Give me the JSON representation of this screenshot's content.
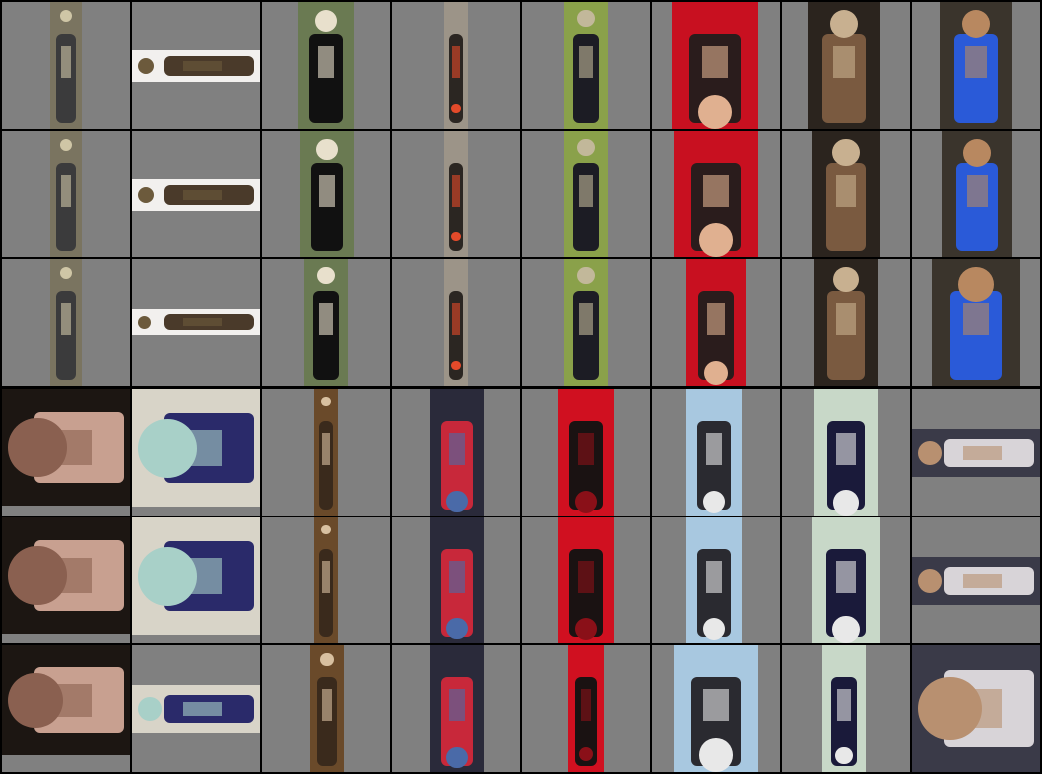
{
  "grid": {
    "columns": 8,
    "bands": 2,
    "rows_per_band": 3,
    "background_color": "#808080",
    "separator_color": "#000000"
  },
  "images": [
    {
      "icon": "person-standing-thumbnail",
      "orientation": "upright",
      "bg": "#7a7460",
      "fg": "#3b3b3c",
      "accent": "#cfc6a6"
    },
    {
      "icon": "person-lying-thumbnail",
      "orientation": "rotated-90",
      "bg": "#f2f0ee",
      "fg": "#4a3a2a",
      "accent": "#6c5a3c"
    },
    {
      "icon": "woman-black-jacket-thumbnail",
      "orientation": "upright",
      "bg": "#6a7a52",
      "fg": "#111111",
      "accent": "#e8e0cc"
    },
    {
      "icon": "person-upside-down-thumbnail",
      "orientation": "upside-down",
      "bg": "#9c9488",
      "fg": "#2b2622",
      "accent": "#e34a2a"
    },
    {
      "icon": "person-walking-path-thumbnail",
      "orientation": "upright",
      "bg": "#8aa14a",
      "fg": "#1c1c24",
      "accent": "#c2b89a"
    },
    {
      "icon": "person-red-shirt-thumbnail",
      "orientation": "upside-down",
      "bg": "#c81020",
      "fg": "#2a1c1c",
      "accent": "#e0b090"
    },
    {
      "icon": "man-face-thumbnail",
      "orientation": "upright",
      "bg": "#2b241e",
      "fg": "#7a5a40",
      "accent": "#c8b090"
    },
    {
      "icon": "man-blue-shirt-thumbnail",
      "orientation": "upright",
      "bg": "#3a342c",
      "fg": "#2a5ad8",
      "accent": "#b88860"
    },
    {
      "icon": "woman-face-sideways-thumbnail",
      "orientation": "rotated-90",
      "bg": "#1c1612",
      "fg": "#c8a090",
      "accent": "#8a6050"
    },
    {
      "icon": "people-sitting-sideways-thumbnail",
      "orientation": "rotated-90",
      "bg": "#d8d4c8",
      "fg": "#2a2a6a",
      "accent": "#a8d0c8"
    },
    {
      "icon": "person-seated-thumbnail",
      "orientation": "upright",
      "bg": "#6a4a2a",
      "fg": "#3a2a1c",
      "accent": "#d8c0a0"
    },
    {
      "icon": "two-people-upside-down-thumbnail",
      "orientation": "upside-down",
      "bg": "#2a2a3a",
      "fg": "#c8283a",
      "accent": "#4a6aa8"
    },
    {
      "icon": "person-red-top-upside-down-thumbnail",
      "orientation": "upside-down",
      "bg": "#d01020",
      "fg": "#1a1212",
      "accent": "#8a1018"
    },
    {
      "icon": "person-blue-sky-thumbnail",
      "orientation": "upside-down",
      "bg": "#a8c8e0",
      "fg": "#2a2a30",
      "accent": "#e8e8e8"
    },
    {
      "icon": "person-white-dress-thumbnail",
      "orientation": "upside-down",
      "bg": "#c8d8c8",
      "fg": "#1a1a3a",
      "accent": "#e8e8e8"
    },
    {
      "icon": "group-people-sideways-thumbnail",
      "orientation": "rotated-90",
      "bg": "#3a3a48",
      "fg": "#d8d4d8",
      "accent": "#b89070"
    }
  ]
}
